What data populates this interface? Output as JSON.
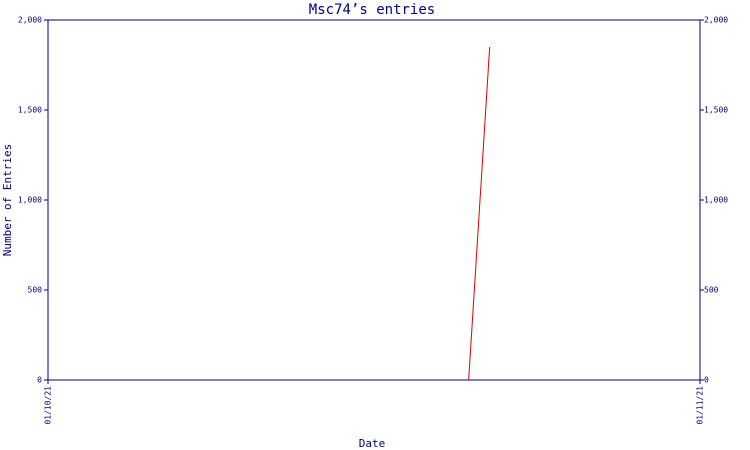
{
  "chart_data": {
    "type": "line",
    "title": "Msc74’s entries",
    "x_label": "Date",
    "y_label": "Number of Entries",
    "date_format": "dd/mm/yy",
    "x": [
      "21/10/21",
      "22/10/21"
    ],
    "values": [
      0,
      1850
    ],
    "color": "#e00000",
    "axis_color": "#000080",
    "xlim": [
      "01/10/21",
      "01/11/21"
    ],
    "xticks": [
      "01/10/21",
      "01/11/21"
    ],
    "ylim": [
      0,
      2000
    ],
    "yticks": [
      0,
      500,
      {
        "value": 1000,
        "label": "1,000"
      },
      {
        "value": 1500,
        "label": "1,500"
      },
      {
        "value": 2000,
        "label": "2,000"
      }
    ],
    "mirror_y_axis": true
  }
}
